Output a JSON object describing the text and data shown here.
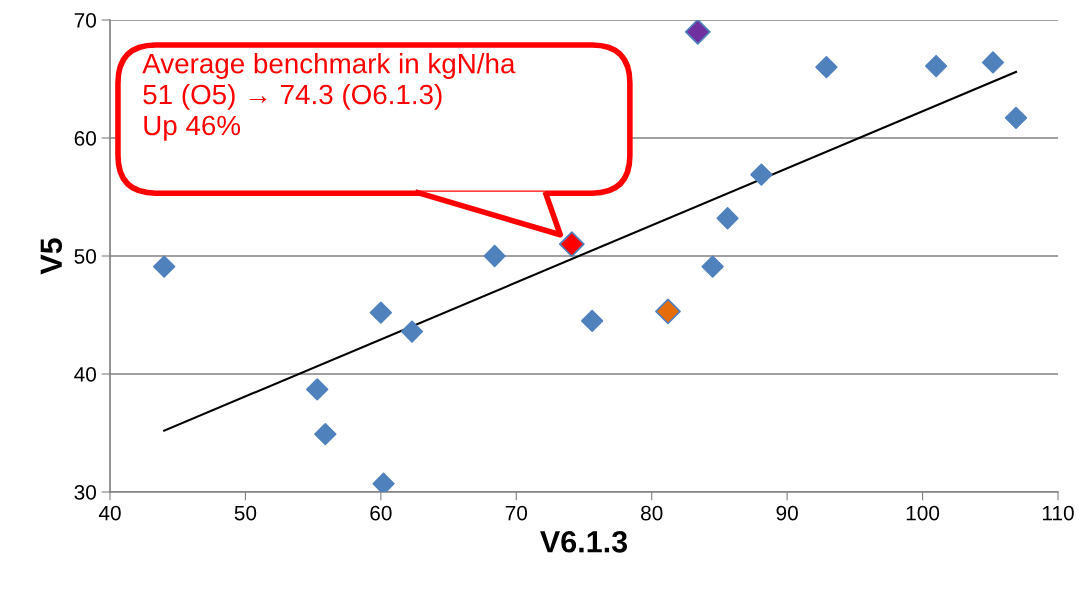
{
  "chart_data": {
    "type": "scatter",
    "xlabel": "V6.1.3",
    "ylabel": "V5",
    "xlim": [
      40,
      110
    ],
    "xticks": [
      40,
      50,
      60,
      70,
      80,
      90,
      100,
      110
    ],
    "ylim": [
      30,
      70
    ],
    "yticks": [
      30,
      40,
      50,
      60,
      70
    ],
    "grid": "y",
    "marker": "diamond",
    "legend": false,
    "series": [
      {
        "color": "#4f81bd",
        "x": [
          44.0,
          55.3,
          55.9,
          60.0,
          60.2,
          62.3,
          68.4,
          75.6,
          84.5,
          85.6,
          88.1,
          92.9,
          101.0,
          105.2,
          106.9
        ],
        "values": [
          49.1,
          38.7,
          34.9,
          45.2,
          30.7,
          43.6,
          50.0,
          44.5,
          49.1,
          53.2,
          56.9,
          66.0,
          66.1,
          66.4,
          61.7
        ]
      },
      {
        "color": "#ff0000",
        "x": [
          74.1
        ],
        "values": [
          51.0
        ]
      },
      {
        "color": "#e46c0a",
        "x": [
          81.2
        ],
        "values": [
          45.3
        ]
      },
      {
        "color": "#7030a0",
        "x": [
          83.4
        ],
        "values": [
          69.0
        ]
      },
      {
        "type": "line",
        "marker": "none",
        "color": "#000000",
        "x": [
          44.0,
          106.9
        ],
        "values": [
          35.2,
          65.6
        ]
      }
    ],
    "annotations": [
      "Average benchmark in kgN/ha\n51 (O5) → 74.3 (O6.1.3)\nUp 46%"
    ]
  }
}
